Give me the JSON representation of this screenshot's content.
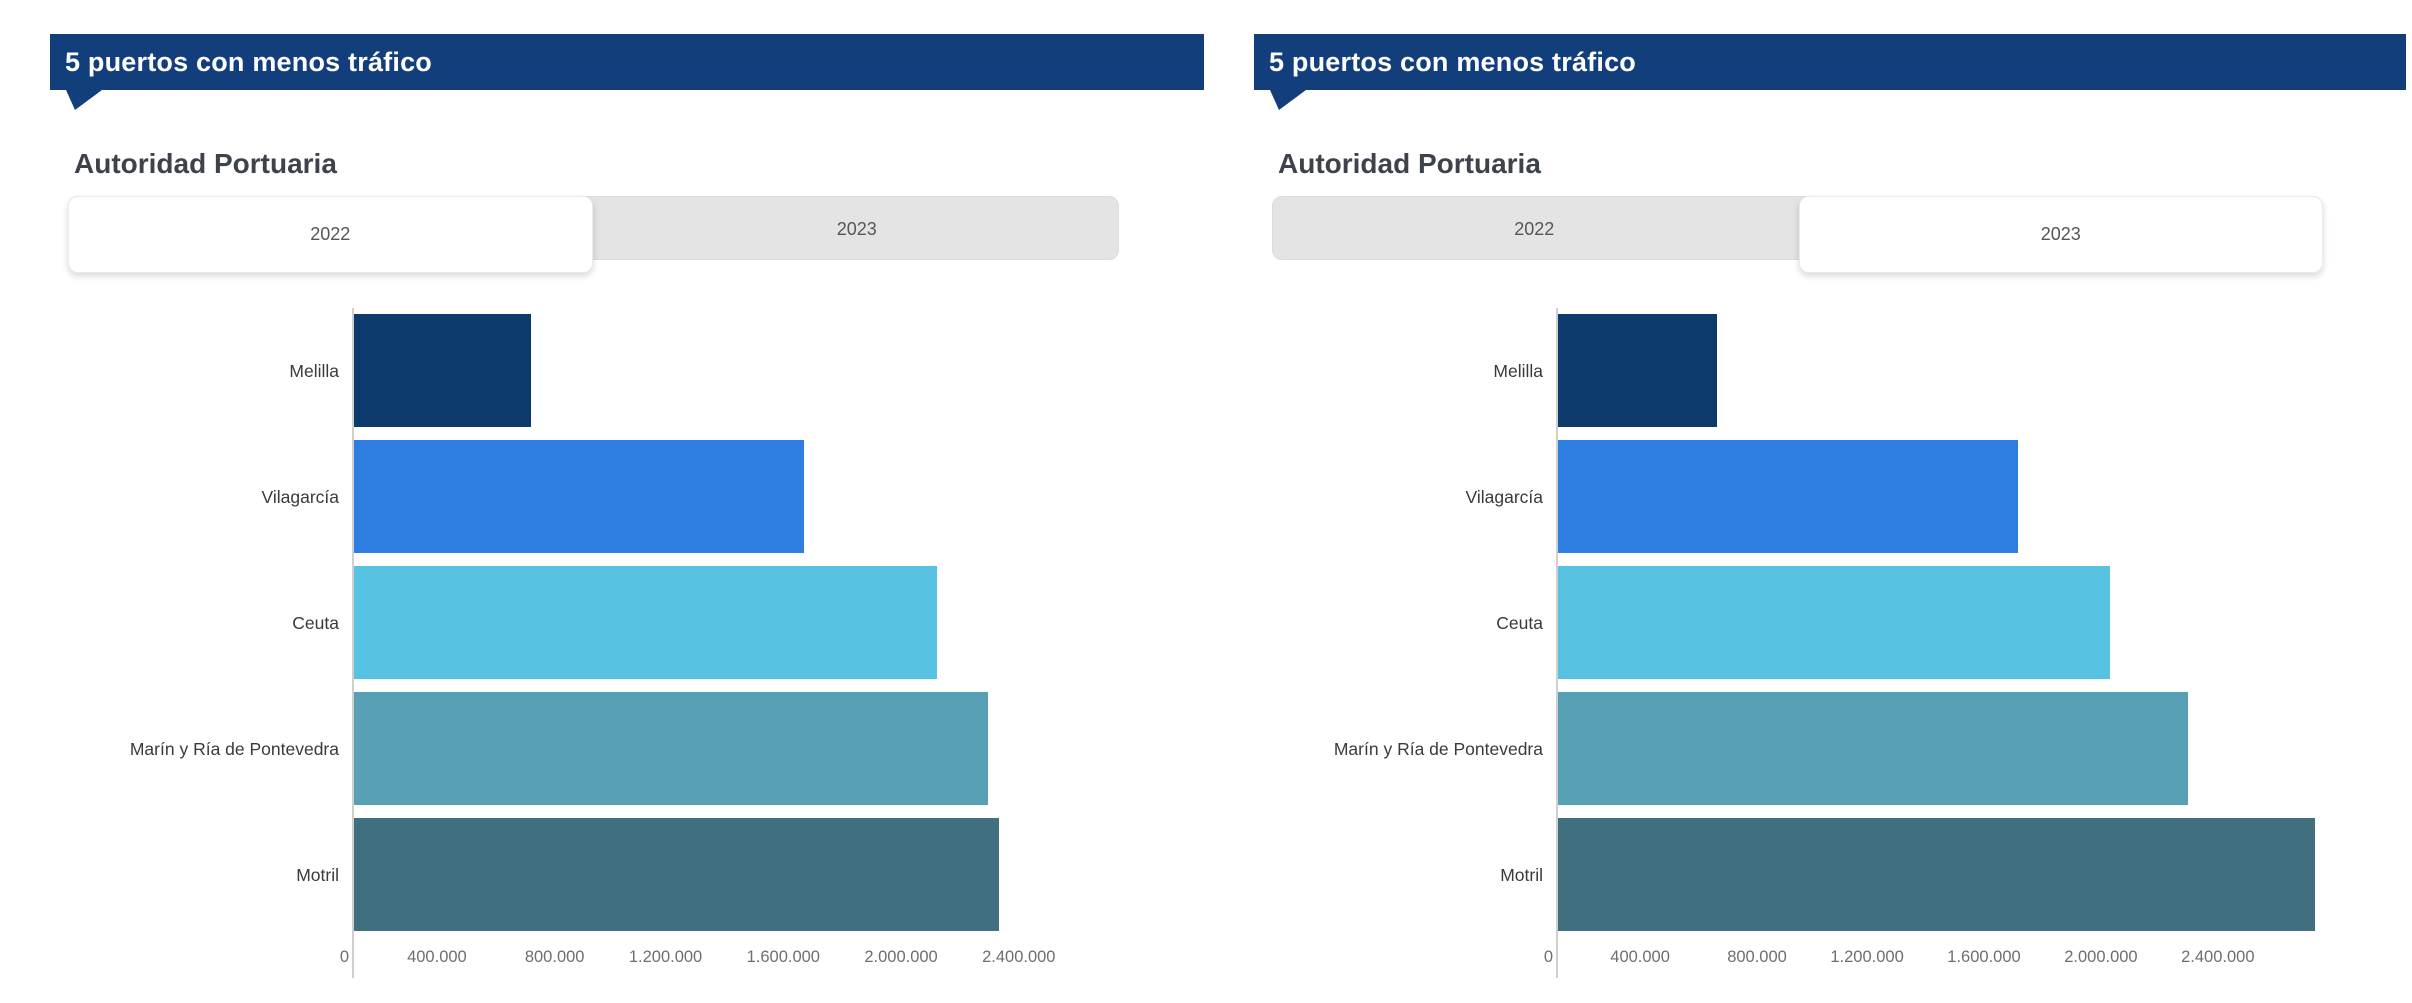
{
  "brand": {
    "header_bg": "#133e7c",
    "tab_inactive_bg": "#e4e4e4",
    "tab_active_bg": "#ffffff",
    "axis_line_color": "#cfcfcf",
    "category_label_color": "#3a3a3a",
    "tick_label_color": "#6e6e6e"
  },
  "panels": [
    {
      "header": "5 puertos con menos tráfico",
      "subtitle": "Autoridad Portuaria",
      "tabs": [
        {
          "label": "2022",
          "active": true
        },
        {
          "label": "2023",
          "active": false
        }
      ]
    },
    {
      "header": "5 puertos con menos tráfico",
      "subtitle": "Autoridad Portuaria",
      "tabs": [
        {
          "label": "2022",
          "active": false
        },
        {
          "label": "2023",
          "active": true
        }
      ]
    }
  ],
  "chart_data": [
    {
      "type": "bar",
      "orientation": "horizontal",
      "title": "5 puertos con menos tráfico",
      "subtitle": "Autoridad Portuaria",
      "year": "2022",
      "categories": [
        "Melilla",
        "Vilagarcía",
        "Ceuta",
        "Marín y Ría de Pontevedra",
        "Motril"
      ],
      "values": [
        600000,
        1530000,
        1980000,
        2155000,
        2190000
      ],
      "bar_colors": [
        "#0c3a6d",
        "#2e7fe1",
        "#57c2e2",
        "#58a0b3",
        "#40707f"
      ],
      "xticks": [
        0,
        400000,
        800000,
        1200000,
        1600000,
        2000000,
        2400000
      ],
      "xtick_labels": [
        "0",
        "400.000",
        "800.000",
        "1.200.000",
        "1.600.000",
        "2.000.000",
        "2.400.000"
      ],
      "xlim": [
        0,
        2310000
      ],
      "grid": false,
      "legend": false
    },
    {
      "type": "bar",
      "orientation": "horizontal",
      "title": "5 puertos con menos tráfico",
      "subtitle": "Autoridad Portuaria",
      "year": "2023",
      "categories": [
        "Melilla",
        "Vilagarcía",
        "Ceuta",
        "Marín y Ría de Pontevedra",
        "Motril"
      ],
      "values": [
        545000,
        1575000,
        1890000,
        2155000,
        2590000
      ],
      "bar_colors": [
        "#0c3a6d",
        "#2e7fe1",
        "#57c2e2",
        "#58a0b3",
        "#40707f"
      ],
      "xticks": [
        0,
        400000,
        800000,
        1200000,
        1600000,
        2000000,
        2400000
      ],
      "xtick_labels": [
        "0",
        "400.000",
        "800.000",
        "1.200.000",
        "1.600.000",
        "2.000.000",
        "2.400.000"
      ],
      "xlim": [
        0,
        2600000
      ],
      "grid": false,
      "legend": false
    }
  ]
}
